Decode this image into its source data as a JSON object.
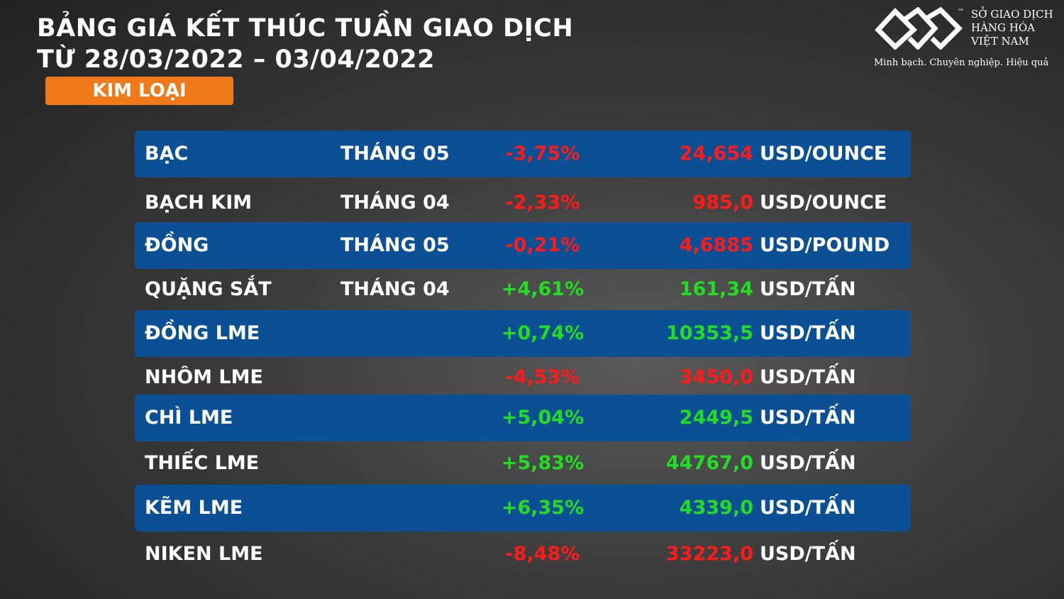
{
  "header": {
    "title_lines": [
      "BẢNG GIÁ KẾT THÚC TUẦN GIAO DỊCH",
      "TỪ 28/03/2022 – 03/04/2022"
    ],
    "badge": "KIM LOẠI"
  },
  "logo": {
    "mark": "™",
    "name_lines": [
      "SỞ GIAO DỊCH",
      "HÀNG HÓA",
      "VIỆT NAM"
    ],
    "slogan": "Minh bạch. Chuyên nghiệp. Hiệu quả"
  },
  "table": {
    "rows": [
      {
        "name": "BẠC",
        "month": "THÁNG 05",
        "change": "-3,75%",
        "price": "24,654",
        "unit": "USD/OUNCE"
      },
      {
        "name": "BẠCH KIM",
        "month": "THÁNG 04",
        "change": "-2,33%",
        "price": "985,0",
        "unit": "USD/OUNCE"
      },
      {
        "name": "ĐỒNG",
        "month": "THÁNG 05",
        "change": "-0,21%",
        "price": "4,6885",
        "unit": "USD/POUND"
      },
      {
        "name": "QUẶNG SẮT",
        "month": "THÁNG 04",
        "change": "+4,61%",
        "price": "161,34",
        "unit": "USD/TẤN"
      },
      {
        "name": "ĐỒNG LME",
        "change": "+0,74%",
        "price": "10353,5",
        "unit": "USD/TẤN"
      },
      {
        "name": "NHÔM LME",
        "change": "-4,53%",
        "price": "3450,0",
        "unit": "USD/TẤN"
      },
      {
        "name": "CHÌ LME",
        "change": "+5,04%",
        "price": "2449,5",
        "unit": "USD/TẤN"
      },
      {
        "name": "THIẾC LME",
        "change": "+5,83%",
        "price": "44767,0",
        "unit": "USD/TẤN"
      },
      {
        "name": "KẼM LME",
        "change": "+6,35%",
        "price": "4339,0",
        "unit": "USD/TẤN"
      },
      {
        "name": "NIKEN LME",
        "change": "-8,48%",
        "price": "33223,0",
        "unit": "USD/TẤN"
      }
    ],
    "colors": {
      "up": "#22dd22",
      "down": "#ff1a1a",
      "band": "#0b4f94"
    }
  }
}
